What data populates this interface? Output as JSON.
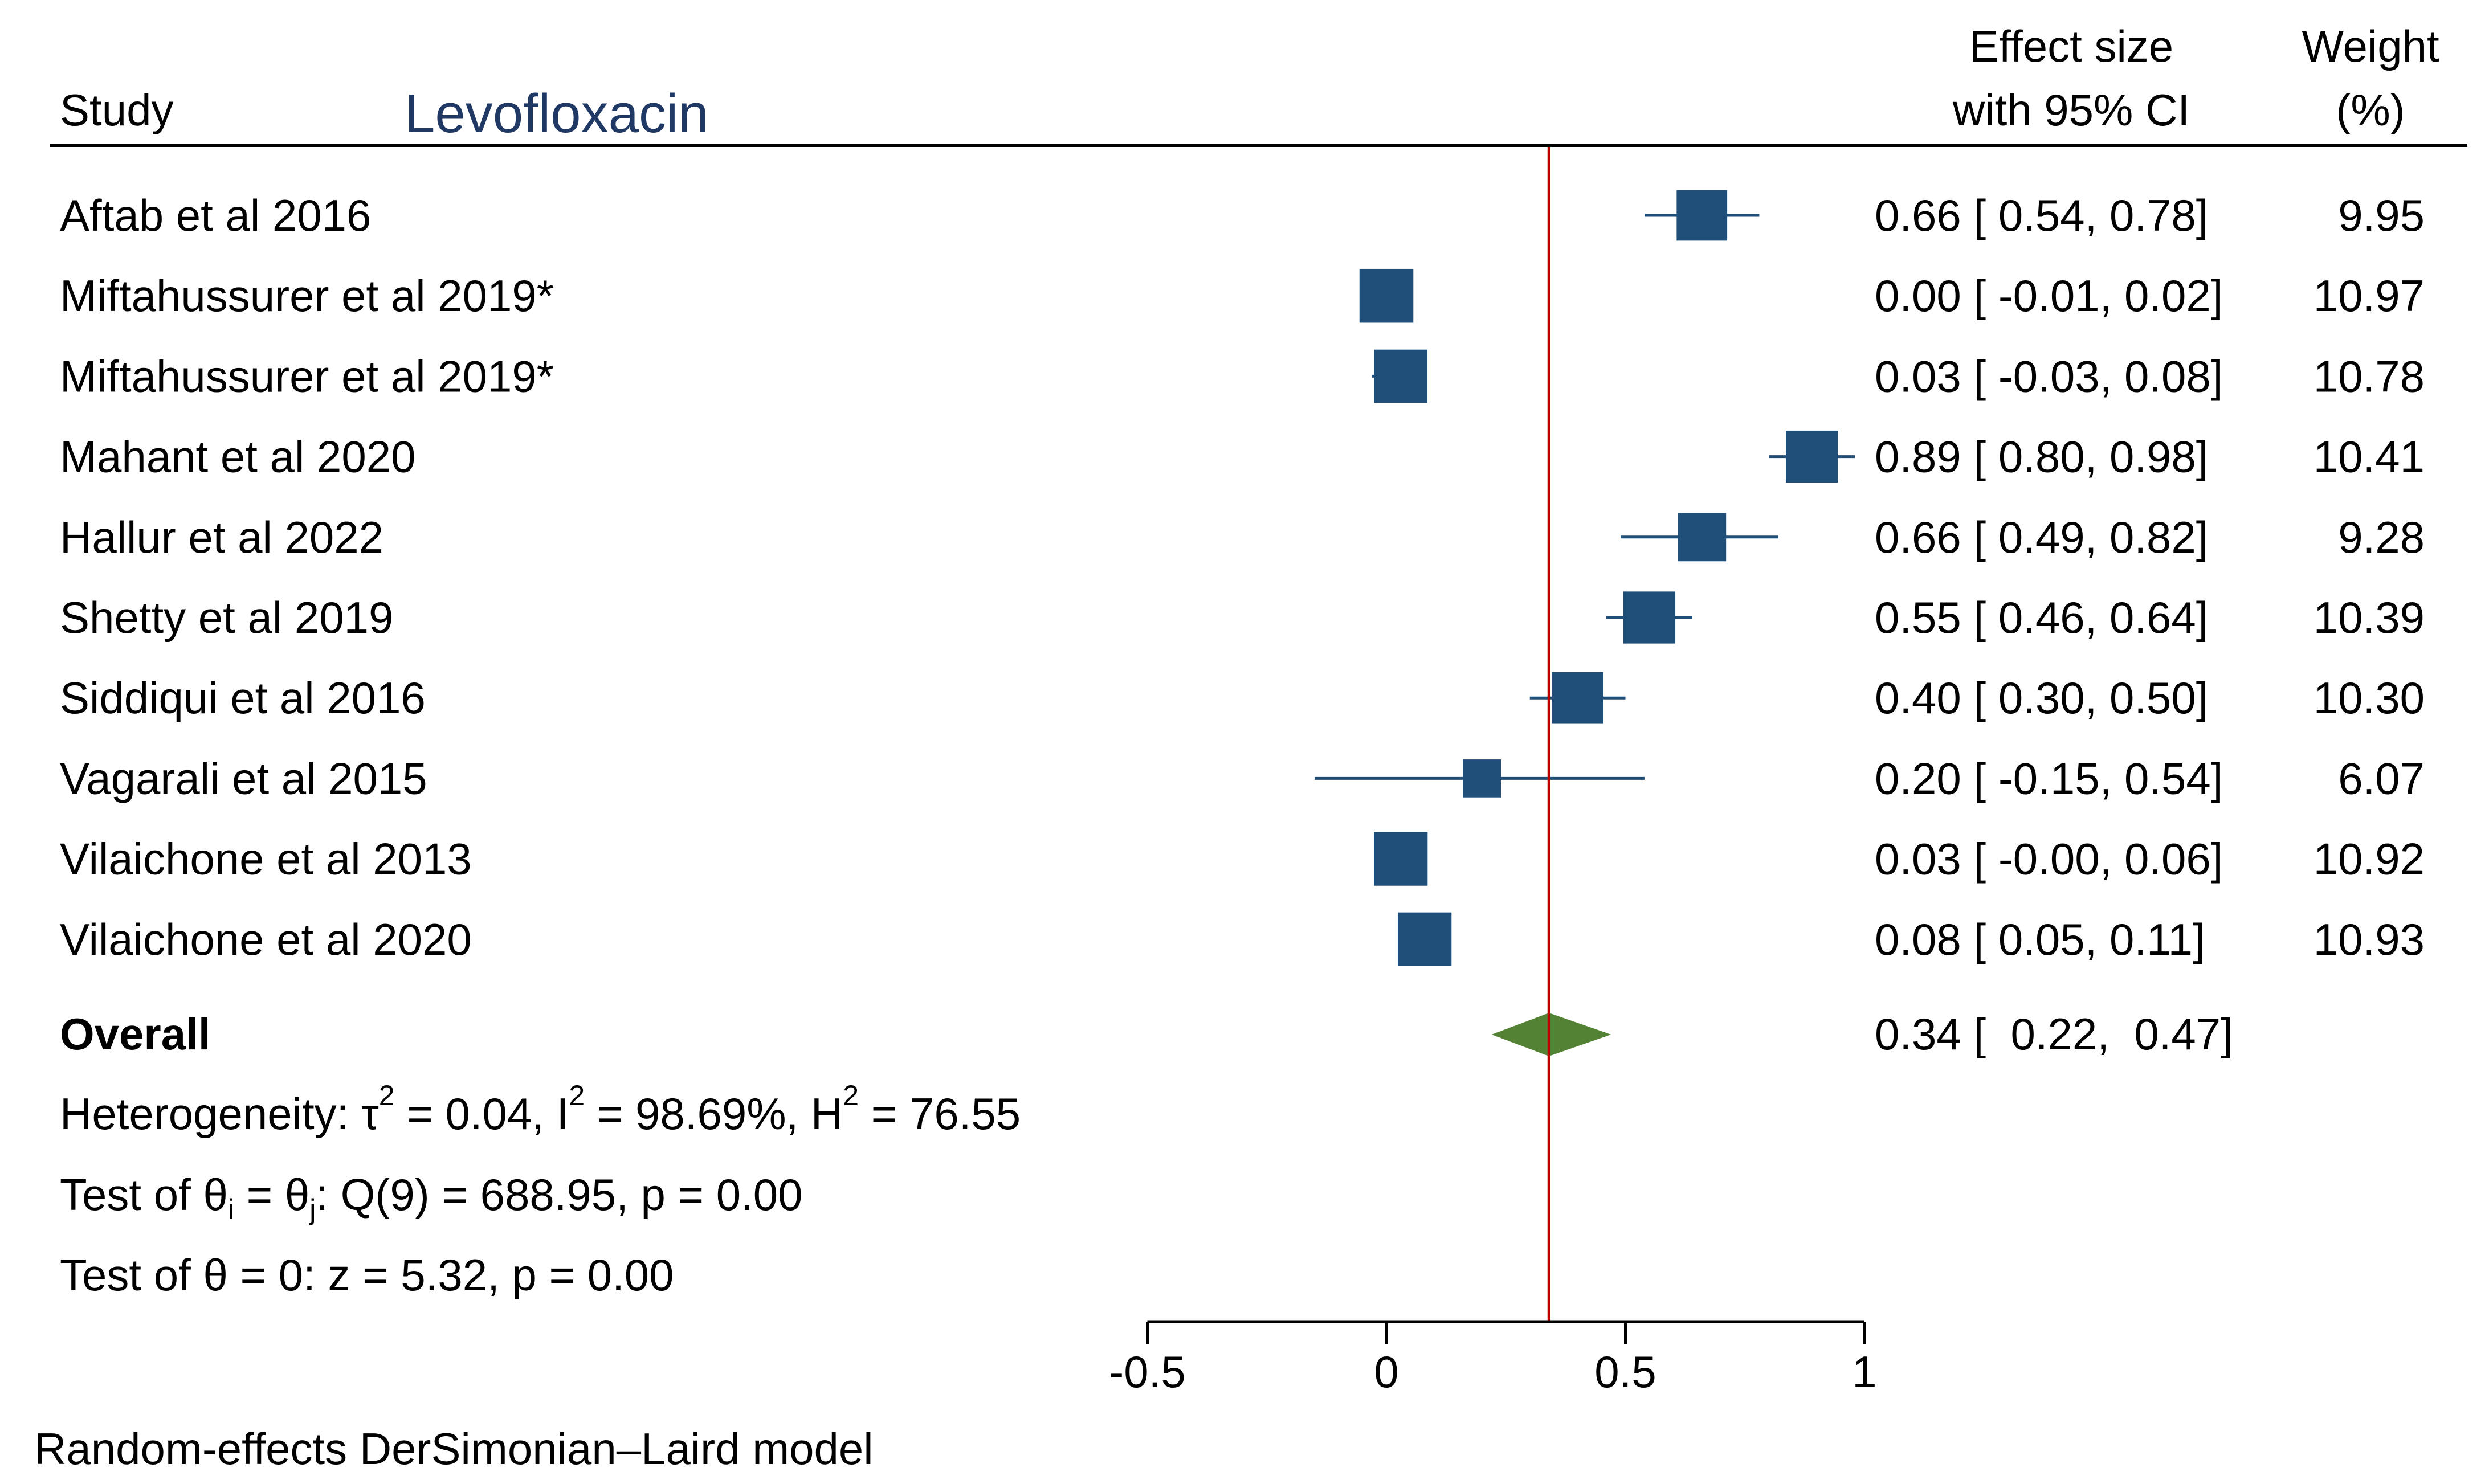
{
  "chart_data": {
    "type": "forest",
    "title": "Levofloxacin",
    "model_note": "Random-effects DerSimonian–Laird model",
    "headers": {
      "study": "Study",
      "effect_line1": "Effect size",
      "effect_line2": "with 95% CI",
      "weight_line1": "Weight",
      "weight_line2": "(%)"
    },
    "xlim": [
      -0.5,
      1
    ],
    "ticks": [
      -0.5,
      0,
      0.5,
      1
    ],
    "tick_labels": [
      "-0.5",
      "0",
      "0.5",
      "1"
    ],
    "reference_line": 0.34,
    "studies": [
      {
        "name": "Aftab et al 2016",
        "es": 0.66,
        "lo": 0.54,
        "hi": 0.78,
        "ci_text": "0.66 [  0.54,  0.78]",
        "weight": 9.95,
        "weight_text": "9.95"
      },
      {
        "name": "Miftahussurer et al 2019*",
        "es": 0.0,
        "lo": -0.01,
        "hi": 0.02,
        "ci_text": "0.00 [ -0.01,  0.02]",
        "weight": 10.97,
        "weight_text": "10.97"
      },
      {
        "name": "Miftahussurer et al 2019*",
        "es": 0.03,
        "lo": -0.03,
        "hi": 0.08,
        "ci_text": "0.03 [ -0.03,  0.08]",
        "weight": 10.78,
        "weight_text": "10.78"
      },
      {
        "name": "Mahant et al 2020",
        "es": 0.89,
        "lo": 0.8,
        "hi": 0.98,
        "ci_text": "0.89 [  0.80,  0.98]",
        "weight": 10.41,
        "weight_text": "10.41"
      },
      {
        "name": "Hallur et al 2022",
        "es": 0.66,
        "lo": 0.49,
        "hi": 0.82,
        "ci_text": "0.66 [  0.49,  0.82]",
        "weight": 9.28,
        "weight_text": "9.28"
      },
      {
        "name": "Shetty et al 2019",
        "es": 0.55,
        "lo": 0.46,
        "hi": 0.64,
        "ci_text": "0.55 [  0.46,  0.64]",
        "weight": 10.39,
        "weight_text": "10.39"
      },
      {
        "name": "Siddiqui et al 2016",
        "es": 0.4,
        "lo": 0.3,
        "hi": 0.5,
        "ci_text": "0.40 [  0.30,  0.50]",
        "weight": 10.3,
        "weight_text": "10.30"
      },
      {
        "name": "Vagarali et al 2015",
        "es": 0.2,
        "lo": -0.15,
        "hi": 0.54,
        "ci_text": "0.20 [ -0.15,  0.54]",
        "weight": 6.07,
        "weight_text": "6.07"
      },
      {
        "name": "Vilaichone et al 2013",
        "es": 0.03,
        "lo": -0.0,
        "hi": 0.06,
        "ci_text": "0.03 [ -0.00,  0.06]",
        "weight": 10.92,
        "weight_text": "10.92"
      },
      {
        "name": "Vilaichone et al 2020",
        "es": 0.08,
        "lo": 0.05,
        "hi": 0.11,
        "ci_text": "0.08 [  0.05,  0.11]",
        "weight": 10.93,
        "weight_text": "10.93"
      }
    ],
    "overall": {
      "label": "Overall",
      "es": 0.34,
      "lo": 0.22,
      "hi": 0.47,
      "ci_text": "0.34 [  0.22,  0.47]"
    },
    "heterogeneity": {
      "prefix": "Heterogeneity: τ",
      "tau_exp": "2",
      "tau_val": " = 0.04, I",
      "i_exp": "2",
      "i_val": " = 98.69%, H",
      "h_exp": "2",
      "h_val": " = 76.55"
    },
    "test_equal": {
      "p1": "Test of θ",
      "s1": "i",
      "p2": " = θ",
      "s2": "j",
      "p3": ": Q(9) = 688.95, p = 0.00"
    },
    "test_zero": "Test of θ = 0: z = 5.32, p = 0.00",
    "colors": {
      "marker": "#1f4e79",
      "diamond": "#548235",
      "refline": "#c00000",
      "title": "#1f3864"
    }
  }
}
